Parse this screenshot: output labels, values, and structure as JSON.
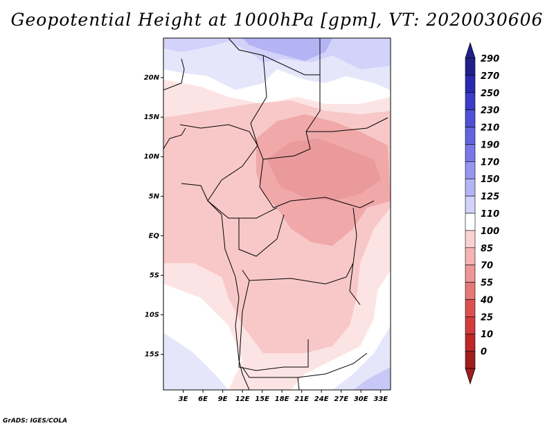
{
  "title": "Geopotential Height at 1000hPa [gpm], VT: 2020030606",
  "credit": "GrADS: IGES/COLA",
  "map": {
    "lon_ticks": [
      "3E",
      "6E",
      "9E",
      "12E",
      "15E",
      "18E",
      "21E",
      "24E",
      "27E",
      "30E",
      "33E"
    ],
    "lat_ticks": [
      "20N",
      "15N",
      "10N",
      "5N",
      "EQ",
      "5S",
      "10S",
      "15S"
    ],
    "lon_range": [
      0,
      34.5
    ],
    "lat_range": [
      -19.5,
      25
    ]
  },
  "colorbar": {
    "labels": [
      "290",
      "270",
      "250",
      "230",
      "210",
      "190",
      "170",
      "150",
      "125",
      "110",
      "100",
      "85",
      "70",
      "55",
      "40",
      "25",
      "10",
      "0"
    ],
    "colors": [
      "#20208c",
      "#2a2ab0",
      "#3c3cc8",
      "#5050d8",
      "#6464e0",
      "#7878e8",
      "#9696f0",
      "#b4b4f5",
      "#d2d2fa",
      "#ffffff",
      "#fbd2d2",
      "#f5b4b4",
      "#ee9696",
      "#e67878",
      "#de5050",
      "#d23c3c",
      "#be2828",
      "#a01e1e"
    ]
  },
  "colors": {
    "land_border": "#000000",
    "axis": "#000000"
  }
}
